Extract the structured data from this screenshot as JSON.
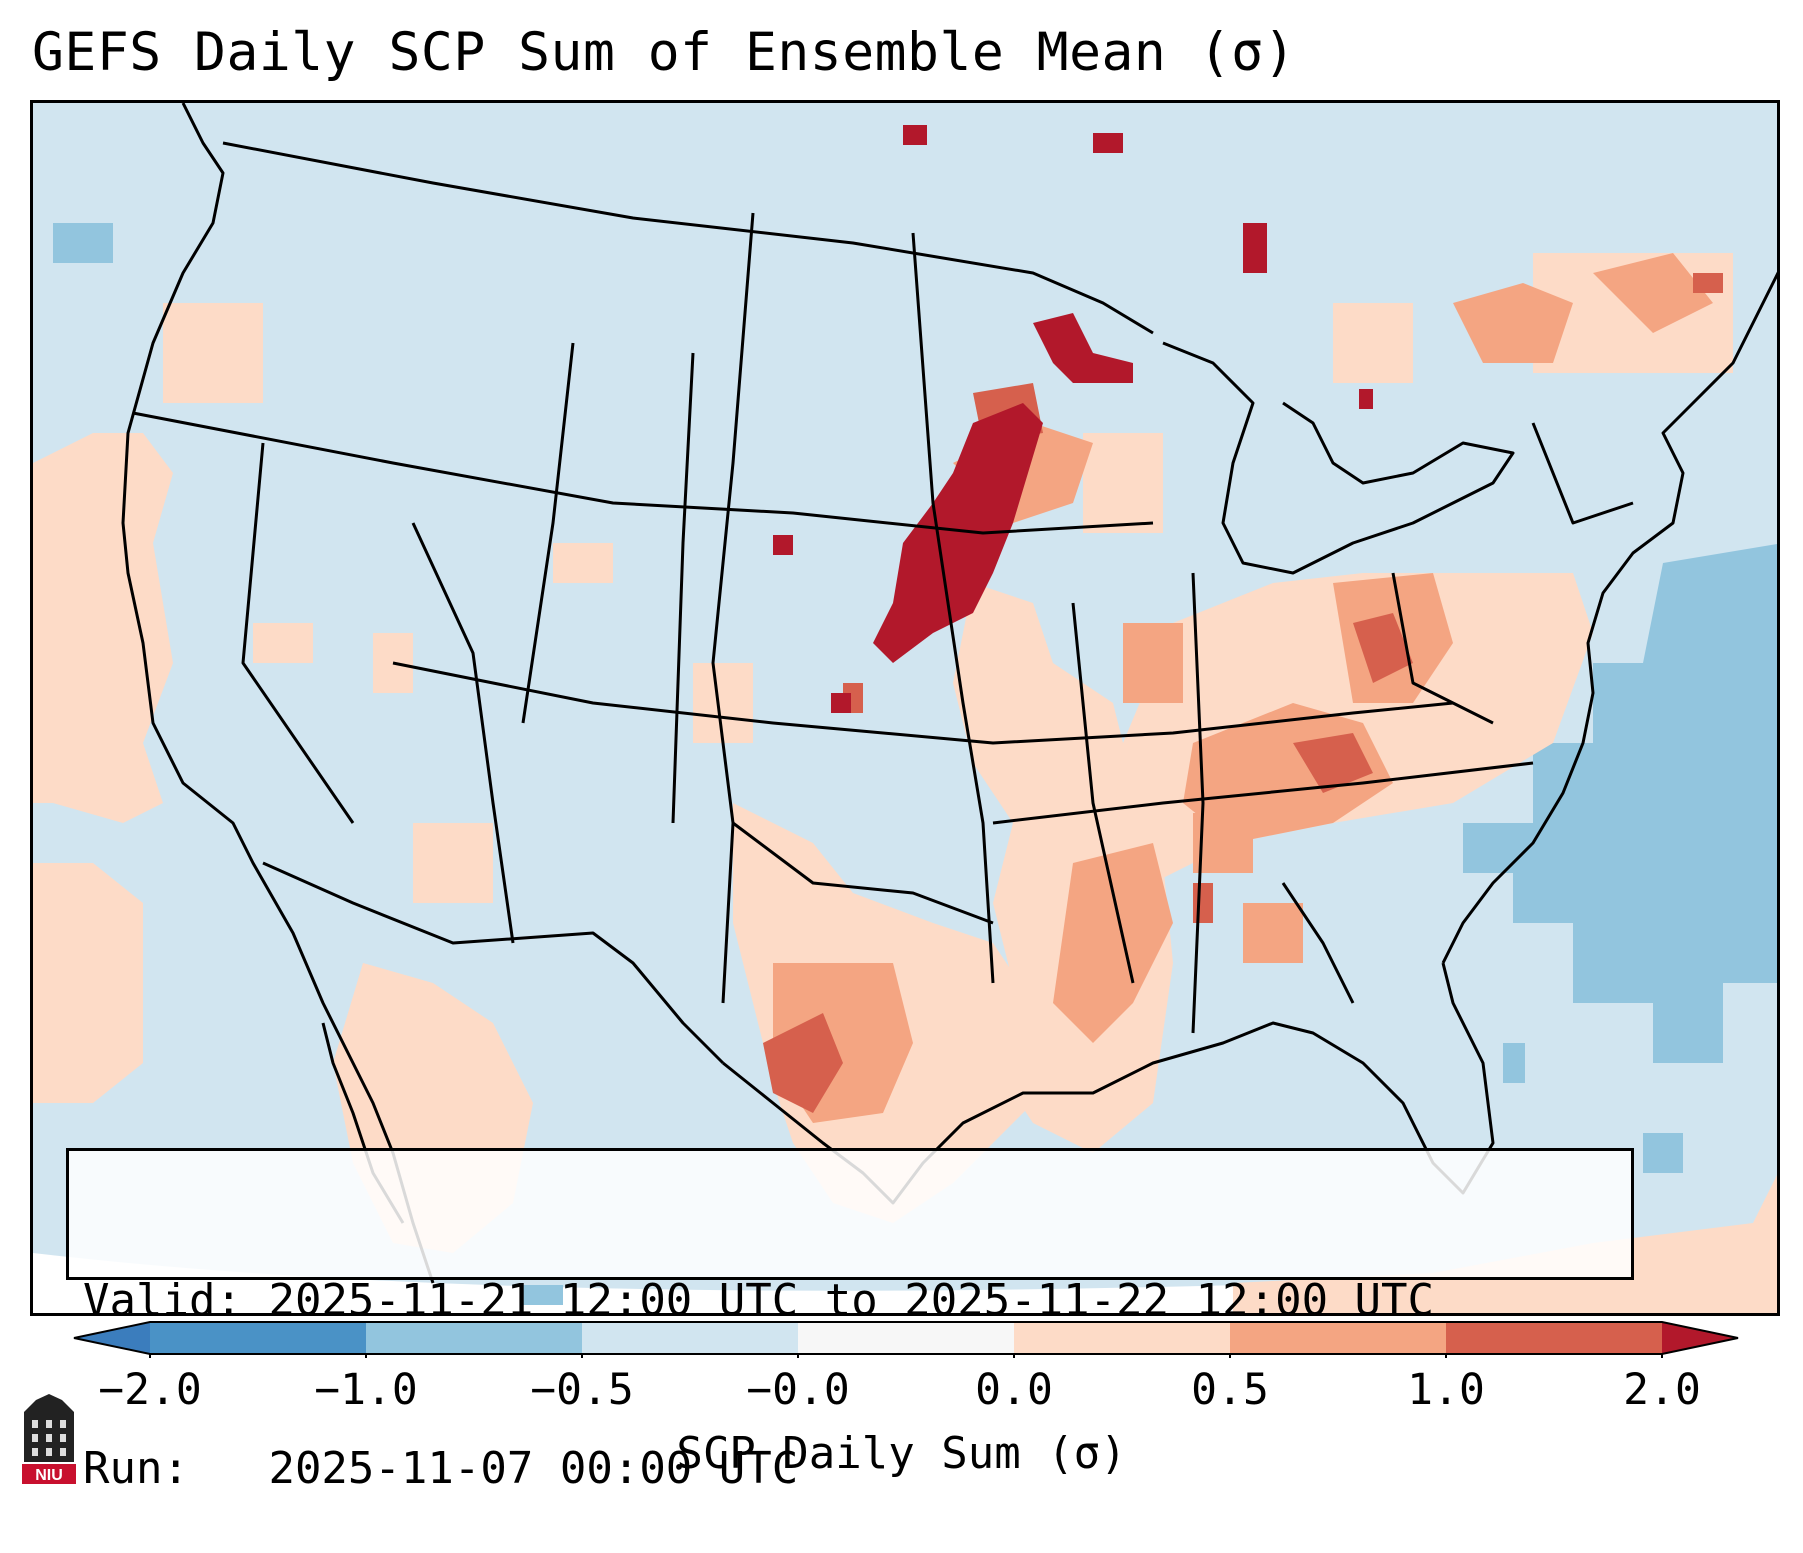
{
  "title": "GEFS Daily SCP Sum of Ensemble Mean (σ)",
  "info": {
    "valid_label": "Valid:",
    "valid_value": "2025-11-21 12:00 UTC to 2025-11-22 12:00 UTC",
    "run_label": "Run:",
    "run_value": "2025-11-07 00:00 UTC"
  },
  "colorbar": {
    "label": "SCP Daily Sum (σ)",
    "ticks": [
      "−2.0",
      "−1.0",
      "−0.5",
      "−0.0",
      "0.0",
      "0.5",
      "1.0",
      "2.0"
    ],
    "bins": [
      {
        "range": "< -2.0",
        "color": "#3b7dbd"
      },
      {
        "range": "-2.0 to -1.0",
        "color": "#4a92c6"
      },
      {
        "range": "-1.0 to -0.5",
        "color": "#92c5de"
      },
      {
        "range": "-0.5 to -0.0",
        "color": "#d1e5f0"
      },
      {
        "range": "-0.0 to 0.0",
        "color": "#f7f7f7"
      },
      {
        "range": "0.0 to 0.5",
        "color": "#fddbc7"
      },
      {
        "range": "0.5 to 1.0",
        "color": "#f4a582"
      },
      {
        "range": "1.0 to 2.0",
        "color": "#d6604d"
      },
      {
        "range": "> 2.0",
        "color": "#b2182b"
      }
    ]
  },
  "logo": {
    "text": "NIU",
    "accent": "#c8102e"
  }
}
